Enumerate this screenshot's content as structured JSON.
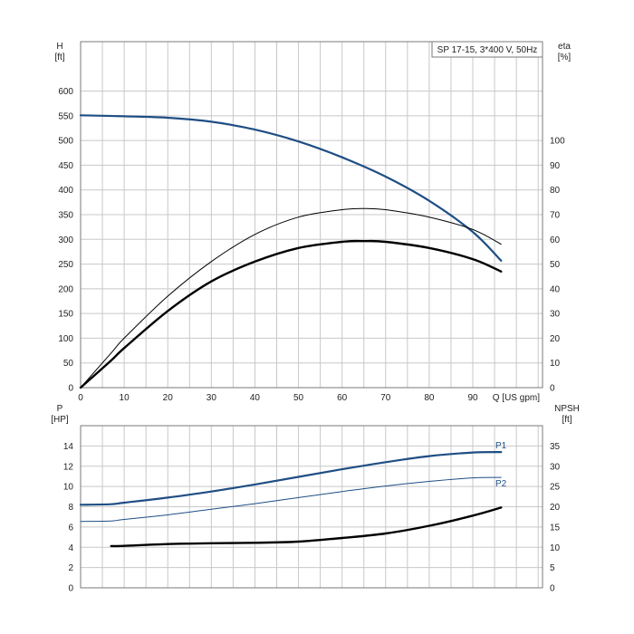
{
  "chart_data": [
    {
      "type": "line",
      "title": "SP 17-15, 3*400 V, 50Hz",
      "xlabel": "Q [US gpm]",
      "x_ticks": [
        0,
        10,
        20,
        30,
        40,
        50,
        60,
        70,
        80,
        90
      ],
      "xlim": [
        0,
        106
      ],
      "y_left": {
        "label_line1": "H",
        "label_line2": "[ft]",
        "ticks": [
          0,
          50,
          100,
          150,
          200,
          250,
          300,
          350,
          400,
          450,
          500,
          550,
          600
        ],
        "lim": [
          0,
          700
        ]
      },
      "y_right": {
        "label_line1": "eta",
        "label_line2": "[%]",
        "ticks": [
          0,
          10,
          20,
          30,
          40,
          50,
          60,
          70,
          80,
          90,
          100
        ],
        "lim": [
          0,
          140
        ]
      },
      "grid": true,
      "series": [
        {
          "axis": "left",
          "color": "#1f4e84",
          "width": 2.2,
          "x": [
            0,
            10,
            20,
            30,
            40,
            50,
            60,
            70,
            80,
            90,
            96.5
          ],
          "y": [
            551,
            549,
            546,
            538,
            522,
            498,
            466,
            427,
            378,
            315,
            257
          ]
        },
        {
          "axis": "right",
          "color": "#000000",
          "width": 1,
          "x": [
            0,
            7,
            10,
            20,
            30,
            40,
            50,
            60,
            65,
            70,
            80,
            90,
            96.5
          ],
          "y": [
            0,
            14,
            20,
            37,
            51,
            62,
            69,
            72,
            72.5,
            72,
            69,
            64,
            58
          ]
        },
        {
          "axis": "right",
          "color": "#000000",
          "width": 2.4,
          "x": [
            0,
            7,
            10,
            20,
            30,
            40,
            50,
            60,
            65,
            70,
            80,
            90,
            96.5
          ],
          "y": [
            0,
            11,
            16,
            31,
            43,
            51,
            56.5,
            59,
            59.3,
            59,
            56.5,
            52,
            47
          ]
        }
      ]
    },
    {
      "type": "line",
      "xlabel": "",
      "x_ticks": [
        0,
        10,
        20,
        30,
        40,
        50,
        60,
        70,
        80,
        90
      ],
      "xlim": [
        0,
        106
      ],
      "y_left": {
        "label_line1": "P",
        "label_line2": "[HP]",
        "ticks": [
          0,
          2,
          4,
          6,
          8,
          10,
          12,
          14
        ],
        "lim": [
          0,
          16
        ]
      },
      "y_right": {
        "label_line1": "NPSH",
        "label_line2": "[ft]",
        "ticks": [
          0,
          5,
          10,
          15,
          20,
          25,
          30,
          35
        ],
        "lim": [
          0,
          40
        ]
      },
      "grid": true,
      "series": [
        {
          "name": "P1",
          "axis": "left",
          "color": "#1f4e84",
          "width": 2.2,
          "x": [
            0,
            7,
            10,
            20,
            30,
            40,
            50,
            60,
            70,
            80,
            90,
            96.5
          ],
          "y": [
            8.2,
            8.25,
            8.4,
            8.9,
            9.5,
            10.2,
            10.95,
            11.7,
            12.4,
            13.0,
            13.35,
            13.4
          ]
        },
        {
          "name": "P2",
          "axis": "left",
          "color": "#1f4e84",
          "width": 1,
          "x": [
            0,
            7,
            10,
            20,
            30,
            40,
            50,
            60,
            70,
            80,
            90,
            96.5
          ],
          "y": [
            6.55,
            6.6,
            6.75,
            7.2,
            7.75,
            8.3,
            8.9,
            9.5,
            10.05,
            10.5,
            10.85,
            10.9
          ]
        },
        {
          "axis": "right",
          "color": "#000000",
          "width": 2.4,
          "x": [
            7,
            10,
            20,
            30,
            40,
            50,
            60,
            70,
            80,
            90,
            96.5
          ],
          "y": [
            10.3,
            10.35,
            10.8,
            11.0,
            11.1,
            11.4,
            12.3,
            13.4,
            15.3,
            17.8,
            19.8
          ]
        }
      ]
    }
  ]
}
